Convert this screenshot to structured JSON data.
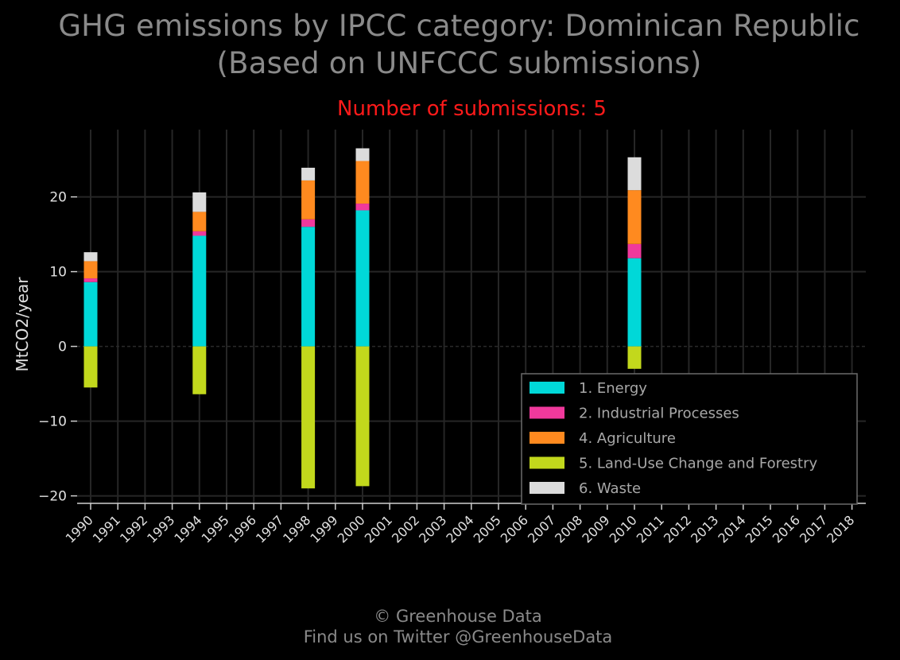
{
  "title": "GHG emissions by IPCC category: Dominican Republic",
  "title_line2": "(Based on UNFCCC submissions)",
  "subtitle": "Number of submissions: 5",
  "footer_line1": "© Greenhouse Data",
  "footer_line2": "Find us on Twitter @GreenhouseData",
  "chart_data": {
    "type": "bar",
    "stacked": true,
    "ylabel": "MtCO2/year",
    "ylim": [
      -21,
      29
    ],
    "yticks": [
      -20,
      -10,
      0,
      10,
      20
    ],
    "ytick_labels": [
      "−20",
      "−10",
      "0",
      "10",
      "20"
    ],
    "grid": true,
    "legend_position": "bottom-right",
    "categories": [
      "1990",
      "1991",
      "1992",
      "1993",
      "1994",
      "1995",
      "1996",
      "1997",
      "1998",
      "1999",
      "2000",
      "2001",
      "2002",
      "2003",
      "2004",
      "2005",
      "2006",
      "2007",
      "2008",
      "2009",
      "2010",
      "2011",
      "2012",
      "2013",
      "2014",
      "2015",
      "2016",
      "2017",
      "2018"
    ],
    "series": [
      {
        "name": "1. Energy",
        "color": "#00d8d8",
        "values": [
          8.6,
          null,
          null,
          null,
          14.8,
          null,
          null,
          null,
          16.0,
          null,
          18.2,
          null,
          null,
          null,
          null,
          null,
          null,
          null,
          null,
          null,
          11.8,
          null,
          null,
          null,
          null,
          null,
          null,
          null,
          null
        ]
      },
      {
        "name": "2. Industrial Processes",
        "color": "#f0399c",
        "values": [
          0.5,
          null,
          null,
          null,
          0.6,
          null,
          null,
          null,
          1.0,
          null,
          0.9,
          null,
          null,
          null,
          null,
          null,
          null,
          null,
          null,
          null,
          1.9,
          null,
          null,
          null,
          null,
          null,
          null,
          null,
          null
        ]
      },
      {
        "name": "4. Agriculture",
        "color": "#ff8a1f",
        "values": [
          2.3,
          null,
          null,
          null,
          2.6,
          null,
          null,
          null,
          5.2,
          null,
          5.7,
          null,
          null,
          null,
          null,
          null,
          null,
          null,
          null,
          null,
          7.2,
          null,
          null,
          null,
          null,
          null,
          null,
          null,
          null
        ]
      },
      {
        "name": "5. Land-Use Change and Forestry",
        "color": "#c2d81c",
        "values": [
          -5.5,
          null,
          null,
          null,
          -6.4,
          null,
          null,
          null,
          -19.0,
          null,
          -18.7,
          null,
          null,
          null,
          null,
          null,
          null,
          null,
          null,
          null,
          -3.0,
          null,
          null,
          null,
          null,
          null,
          null,
          null,
          null
        ]
      },
      {
        "name": "6. Waste",
        "color": "#dcdcdc",
        "values": [
          1.2,
          null,
          null,
          null,
          2.6,
          null,
          null,
          null,
          1.7,
          null,
          1.7,
          null,
          null,
          null,
          null,
          null,
          null,
          null,
          null,
          null,
          4.4,
          null,
          null,
          null,
          null,
          null,
          null,
          null,
          null
        ]
      }
    ]
  }
}
